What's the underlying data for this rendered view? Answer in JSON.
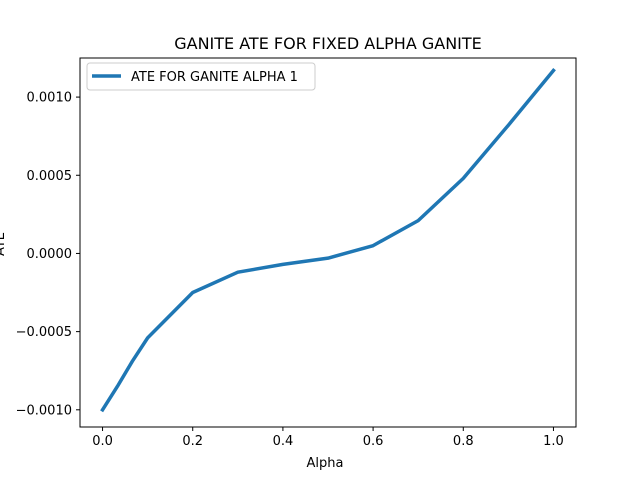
{
  "chart_data": {
    "type": "line",
    "title": "GANITE ATE FOR FIXED ALPHA GANITE",
    "xlabel": "Alpha",
    "ylabel": "ATE",
    "xlim": [
      -0.05,
      1.05
    ],
    "ylim": [
      -0.00111,
      0.00125
    ],
    "x_ticks": [
      0.0,
      0.2,
      0.4,
      0.6,
      0.8,
      1.0
    ],
    "x_tick_labels": [
      "0.0",
      "0.2",
      "0.4",
      "0.6",
      "0.8",
      "1.0"
    ],
    "y_ticks": [
      -0.001,
      -0.0005,
      0.0,
      0.0005,
      0.001
    ],
    "y_tick_labels": [
      "−0.0010",
      "−0.0005",
      "0.0000",
      "0.0005",
      "0.0010"
    ],
    "grid": false,
    "legend_position": "upper-left",
    "series": [
      {
        "name": "ATE FOR GANITE ALPHA 1",
        "color": "#1f77b4",
        "x": [
          0.0,
          0.033,
          0.066,
          0.1,
          0.2,
          0.3,
          0.4,
          0.5,
          0.6,
          0.7,
          0.8,
          0.9,
          1.0
        ],
        "y": [
          -0.001,
          -0.00085,
          -0.00069,
          -0.00054,
          -0.00025,
          -0.00012,
          -7e-05,
          -3e-05,
          5e-05,
          0.00021,
          0.00048,
          0.00082,
          0.00117
        ]
      }
    ]
  }
}
